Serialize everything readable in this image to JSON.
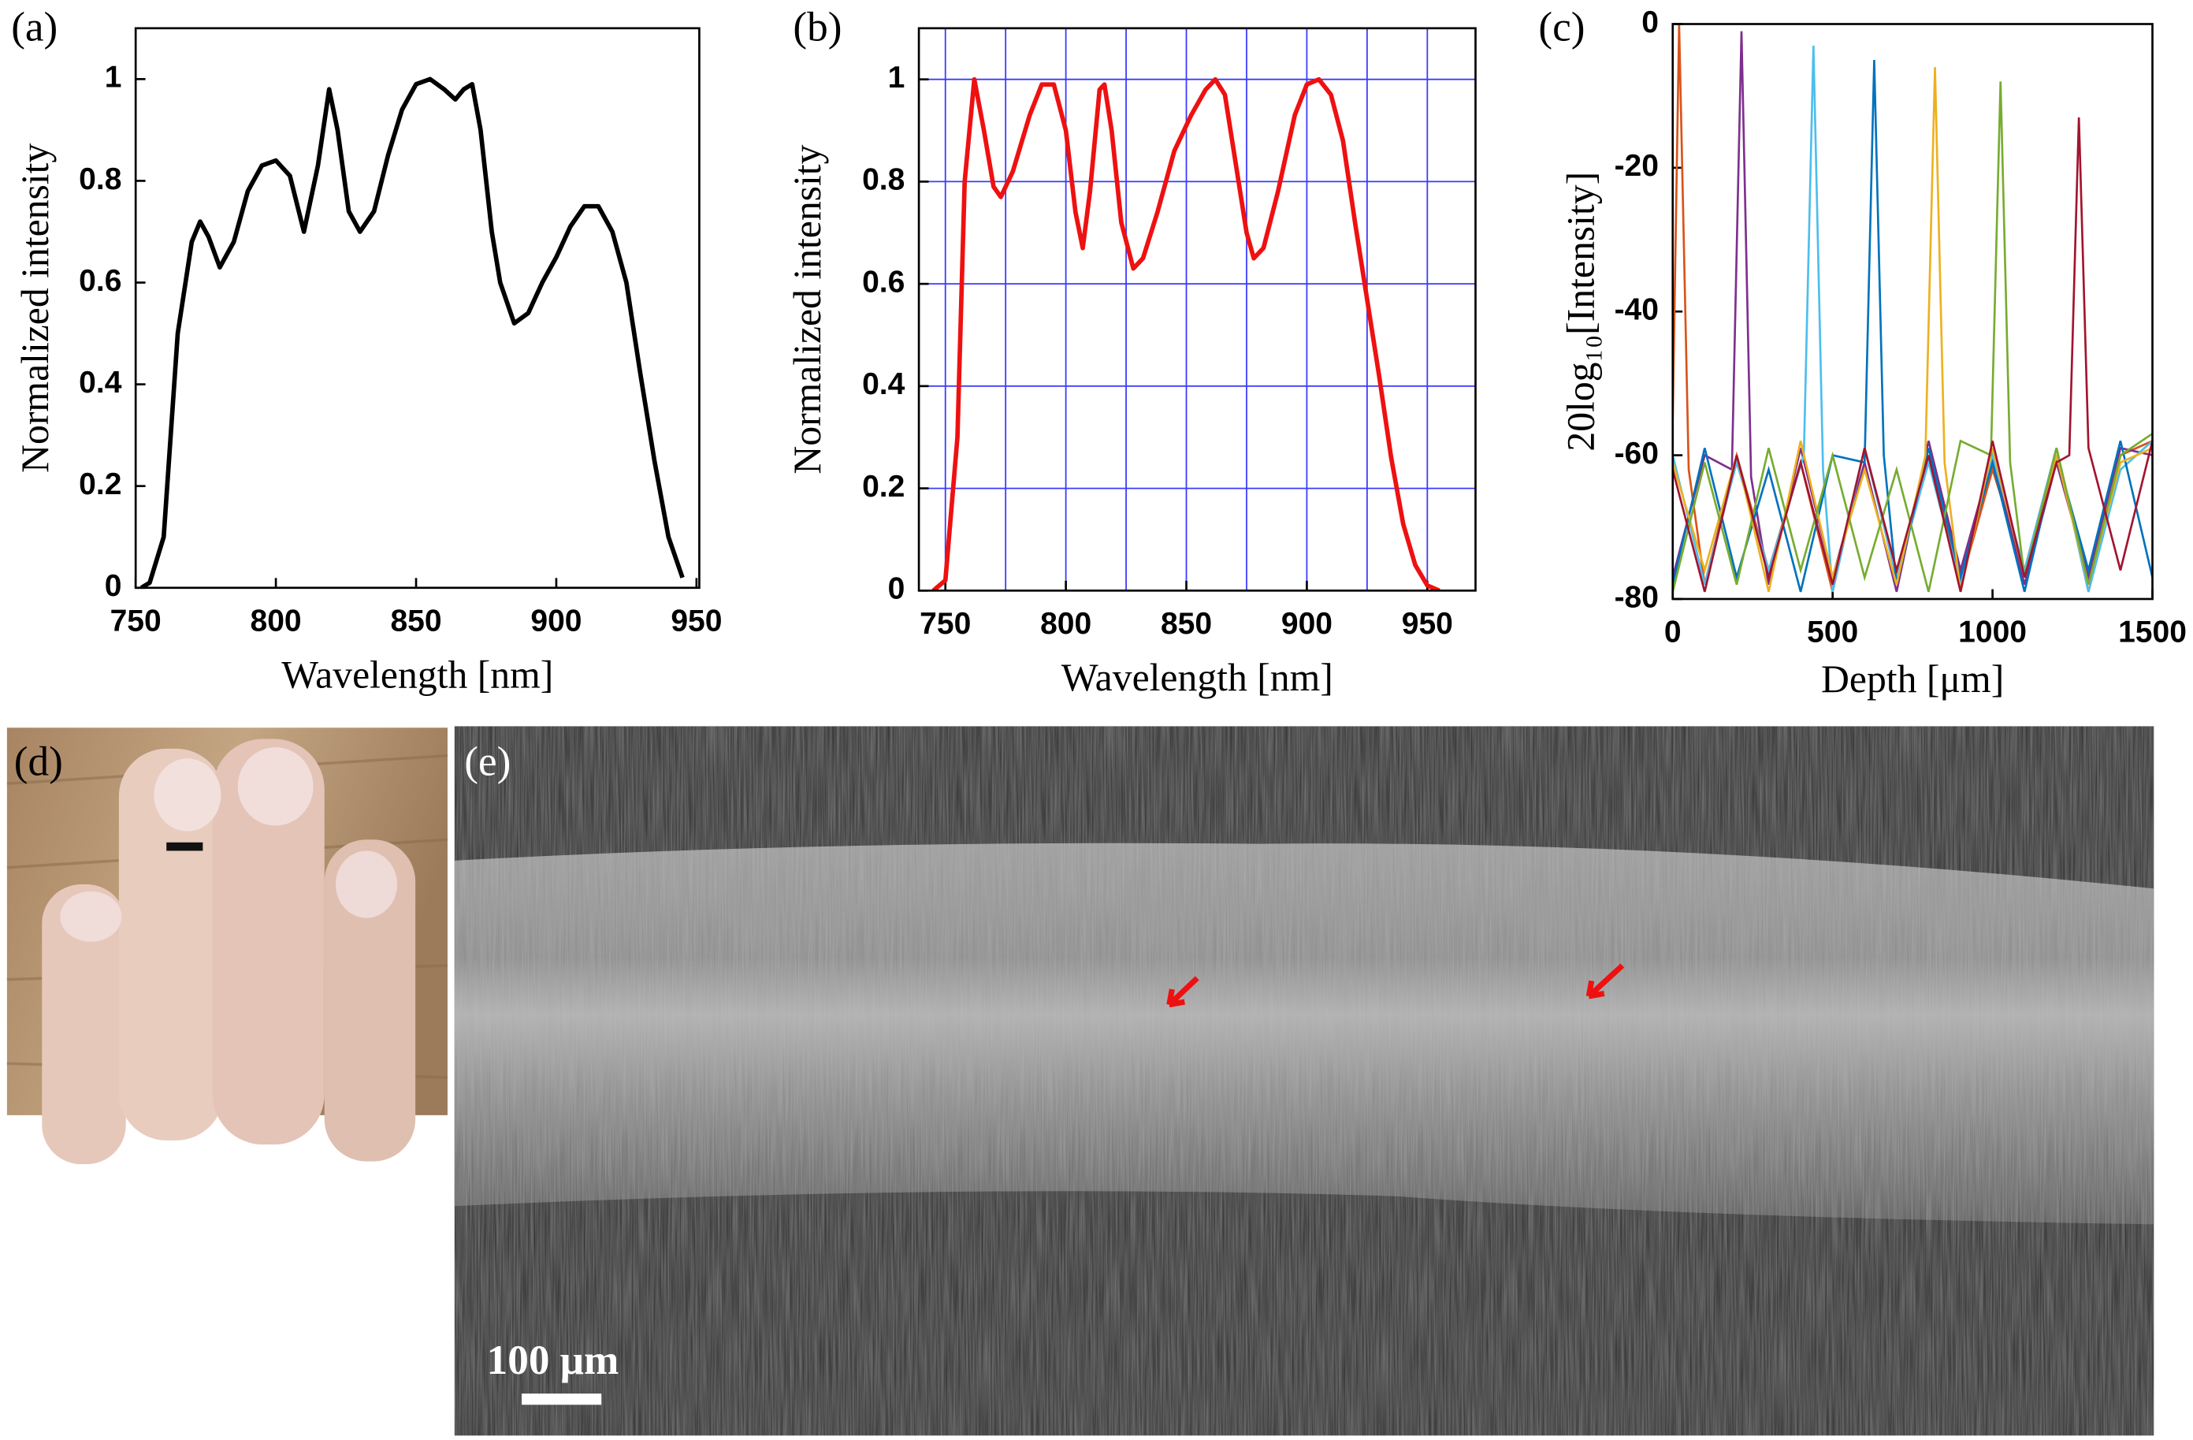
{
  "chart_data": [
    {
      "type": "line",
      "label": "(a)",
      "xlabel": "Wavelength [nm]",
      "ylabel": "Normalized intensity",
      "color": "#000000",
      "grid": false,
      "xlim": [
        750,
        951
      ],
      "ylim": [
        0,
        1.1
      ],
      "xticks": [
        750,
        800,
        850,
        900,
        950
      ],
      "yticks": [
        0,
        0.2,
        0.4,
        0.6,
        0.8,
        1
      ],
      "x": [
        752,
        755,
        760,
        765,
        770,
        773,
        776,
        780,
        785,
        790,
        795,
        800,
        805,
        810,
        815,
        819,
        822,
        826,
        830,
        835,
        840,
        845,
        850,
        855,
        860,
        864,
        867,
        870,
        873,
        877,
        880,
        885,
        890,
        895,
        900,
        905,
        910,
        915,
        920,
        925,
        930,
        935,
        940,
        945
      ],
      "values": [
        0,
        0.01,
        0.1,
        0.5,
        0.68,
        0.72,
        0.69,
        0.63,
        0.68,
        0.78,
        0.83,
        0.84,
        0.81,
        0.7,
        0.83,
        0.98,
        0.9,
        0.74,
        0.7,
        0.74,
        0.85,
        0.94,
        0.99,
        1.0,
        0.98,
        0.96,
        0.98,
        0.99,
        0.9,
        0.7,
        0.6,
        0.52,
        0.54,
        0.6,
        0.65,
        0.71,
        0.75,
        0.75,
        0.7,
        0.6,
        0.42,
        0.25,
        0.1,
        0.02
      ]
    },
    {
      "type": "line",
      "label": "(b)",
      "xlabel": "Wavelength [nm]",
      "ylabel": "Normalized intensity",
      "color": "#ee1111",
      "grid": true,
      "grid_color": "#3a3aff",
      "xlim": [
        739,
        970
      ],
      "ylim": [
        0,
        1.1
      ],
      "xticks": [
        750,
        800,
        850,
        900,
        950
      ],
      "yticks": [
        0,
        0.2,
        0.4,
        0.6,
        0.8,
        1
      ],
      "xgrid": [
        750,
        775,
        800,
        825,
        850,
        875,
        900,
        925,
        950
      ],
      "x": [
        745,
        750,
        755,
        758,
        762,
        766,
        770,
        773,
        778,
        785,
        790,
        795,
        800,
        804,
        807,
        810,
        814,
        816,
        819,
        823,
        828,
        832,
        838,
        845,
        852,
        858,
        862,
        866,
        870,
        875,
        878,
        882,
        888,
        895,
        900,
        905,
        910,
        915,
        920,
        925,
        930,
        935,
        940,
        945,
        950,
        955
      ],
      "values": [
        0,
        0.02,
        0.3,
        0.8,
        1.0,
        0.9,
        0.79,
        0.77,
        0.82,
        0.93,
        0.99,
        0.99,
        0.9,
        0.74,
        0.67,
        0.78,
        0.98,
        0.99,
        0.9,
        0.72,
        0.63,
        0.65,
        0.74,
        0.86,
        0.93,
        0.98,
        1.0,
        0.97,
        0.85,
        0.7,
        0.65,
        0.67,
        0.78,
        0.93,
        0.99,
        1.0,
        0.97,
        0.88,
        0.72,
        0.57,
        0.42,
        0.26,
        0.13,
        0.05,
        0.01,
        0
      ]
    },
    {
      "type": "multiline",
      "label": "(c)",
      "xlabel": "Depth [μm]",
      "ylabel": "20log₁₀[Intensity]",
      "grid": false,
      "xlim": [
        0,
        1500
      ],
      "ylim": [
        -80,
        0
      ],
      "xticks": [
        0,
        500,
        1000,
        1500
      ],
      "yticks": [
        0,
        -20,
        -40,
        -60,
        -80
      ],
      "series": [
        {
          "color": "#d95319",
          "x": [
            0,
            20,
            50,
            100,
            200,
            300,
            400,
            500,
            600,
            700,
            800,
            900,
            1000,
            1100,
            1200,
            1300,
            1400,
            1500
          ],
          "values": [
            -55,
            0,
            -62,
            -78,
            -60,
            -76,
            -61,
            -79,
            -59,
            -77,
            -60,
            -78,
            -62,
            -76,
            -59,
            -79,
            -60,
            -58
          ]
        },
        {
          "color": "#7e2f8e",
          "x": [
            0,
            100,
            185,
            215,
            245,
            300,
            400,
            500,
            600,
            700,
            800,
            900,
            1000,
            1100,
            1200,
            1300,
            1400,
            1500
          ],
          "values": [
            -77,
            -60,
            -62,
            -1,
            -63,
            -78,
            -59,
            -77,
            -61,
            -79,
            -58,
            -76,
            -60,
            -78,
            -61,
            -77,
            -59,
            -60
          ]
        },
        {
          "color": "#4dbeee",
          "x": [
            0,
            100,
            200,
            300,
            410,
            440,
            470,
            500,
            600,
            700,
            800,
            900,
            1000,
            1100,
            1200,
            1300,
            1400,
            1500
          ],
          "values": [
            -60,
            -78,
            -61,
            -76,
            -60,
            -3,
            -62,
            -79,
            -59,
            -77,
            -61,
            -78,
            -60,
            -76,
            -59,
            -79,
            -62,
            -58
          ]
        },
        {
          "color": "#0072bd",
          "x": [
            0,
            100,
            200,
            300,
            400,
            500,
            600,
            630,
            660,
            700,
            800,
            900,
            1000,
            1100,
            1200,
            1300,
            1400,
            1500
          ],
          "values": [
            -78,
            -59,
            -77,
            -62,
            -79,
            -60,
            -61,
            -5,
            -60,
            -78,
            -59,
            -77,
            -61,
            -79,
            -60,
            -76,
            -58,
            -77
          ]
        },
        {
          "color": "#edb120",
          "x": [
            0,
            100,
            200,
            300,
            400,
            500,
            600,
            700,
            790,
            820,
            850,
            900,
            1000,
            1100,
            1200,
            1300,
            1400,
            1500
          ],
          "values": [
            -61,
            -76,
            -60,
            -79,
            -58,
            -77,
            -62,
            -78,
            -60,
            -6,
            -61,
            -79,
            -59,
            -77,
            -60,
            -78,
            -61,
            -59
          ]
        },
        {
          "color": "#77ac30",
          "x": [
            0,
            100,
            200,
            300,
            400,
            500,
            600,
            700,
            800,
            900,
            995,
            1025,
            1055,
            1100,
            1200,
            1300,
            1400,
            1500
          ],
          "values": [
            -79,
            -61,
            -78,
            -59,
            -76,
            -60,
            -77,
            -62,
            -79,
            -58,
            -60,
            -8,
            -61,
            -77,
            -59,
            -78,
            -60,
            -57
          ]
        },
        {
          "color": "#a2142f",
          "x": [
            0,
            100,
            200,
            300,
            400,
            500,
            600,
            700,
            800,
            900,
            1000,
            1100,
            1200,
            1240,
            1270,
            1300,
            1400,
            1500
          ],
          "values": [
            -62,
            -79,
            -60,
            -77,
            -61,
            -78,
            -59,
            -76,
            -60,
            -79,
            -58,
            -77,
            -61,
            -60,
            -13,
            -59,
            -76,
            -58
          ]
        }
      ]
    }
  ],
  "images": {
    "d": {
      "label": "(d)"
    },
    "e": {
      "label": "(e)",
      "scale_bar": "100 μm"
    }
  }
}
